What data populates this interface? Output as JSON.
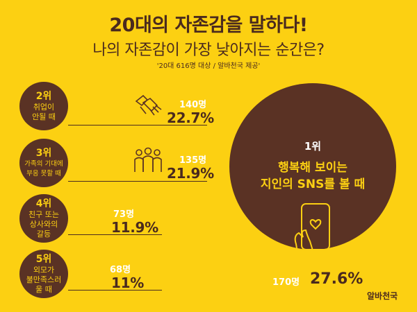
{
  "title": "20대의 자존감을 말하다!",
  "subtitle": "나의 자존감이 가장 낮아지는 순간은?",
  "source": "'20대 616명 대상 / 알바천국 제공'",
  "brand": "알바천국",
  "top": {
    "rank": "1위",
    "label_line1": "행복해 보이는",
    "label_line2": "지인의 SNS를 볼 때",
    "count": "170명",
    "pct": "27.6%",
    "icon": "phone-heart-icon"
  },
  "items": [
    {
      "rank": "2위",
      "line1": "취업이",
      "line2": "안될 때",
      "line3": "",
      "count": "140명",
      "pct": "22.7%",
      "icon": "handshake-icon"
    },
    {
      "rank": "3위",
      "line1": "가족의 기대에",
      "line2": "부응 못할 때",
      "line3": "",
      "count": "135명",
      "pct": "21.9%",
      "icon": "family-icon"
    },
    {
      "rank": "4위",
      "line1": "친구 또는",
      "line2": "상사와의",
      "line3": "갈등",
      "count": "73명",
      "pct": "11.9%"
    },
    {
      "rank": "5위",
      "line1": "외모가",
      "line2": "불만족스러",
      "line3": "울 때",
      "count": "68명",
      "pct": "11%"
    }
  ],
  "chart_data": {
    "type": "bar",
    "title": "20대의 자존감을 말하다!",
    "subtitle": "나의 자존감이 가장 낮아지는 순간은?",
    "categories": [
      "행복해 보이는 지인의 SNS를 볼 때",
      "취업이 안될 때",
      "가족의 기대에 부응 못할 때",
      "친구 또는 상사와의 갈등",
      "외모가 불만족스러울 때"
    ],
    "ranks": [
      "1위",
      "2위",
      "3위",
      "4위",
      "5위"
    ],
    "counts": [
      170,
      140,
      135,
      73,
      68
    ],
    "values": [
      27.6,
      22.7,
      21.9,
      11.9,
      11
    ],
    "unit": "%"
  },
  "colors": {
    "background": "#fcd012",
    "brown": "#5a3224",
    "text_dark": "#4a2a1e",
    "highlight": "#fcd012",
    "white": "#ffffff"
  }
}
